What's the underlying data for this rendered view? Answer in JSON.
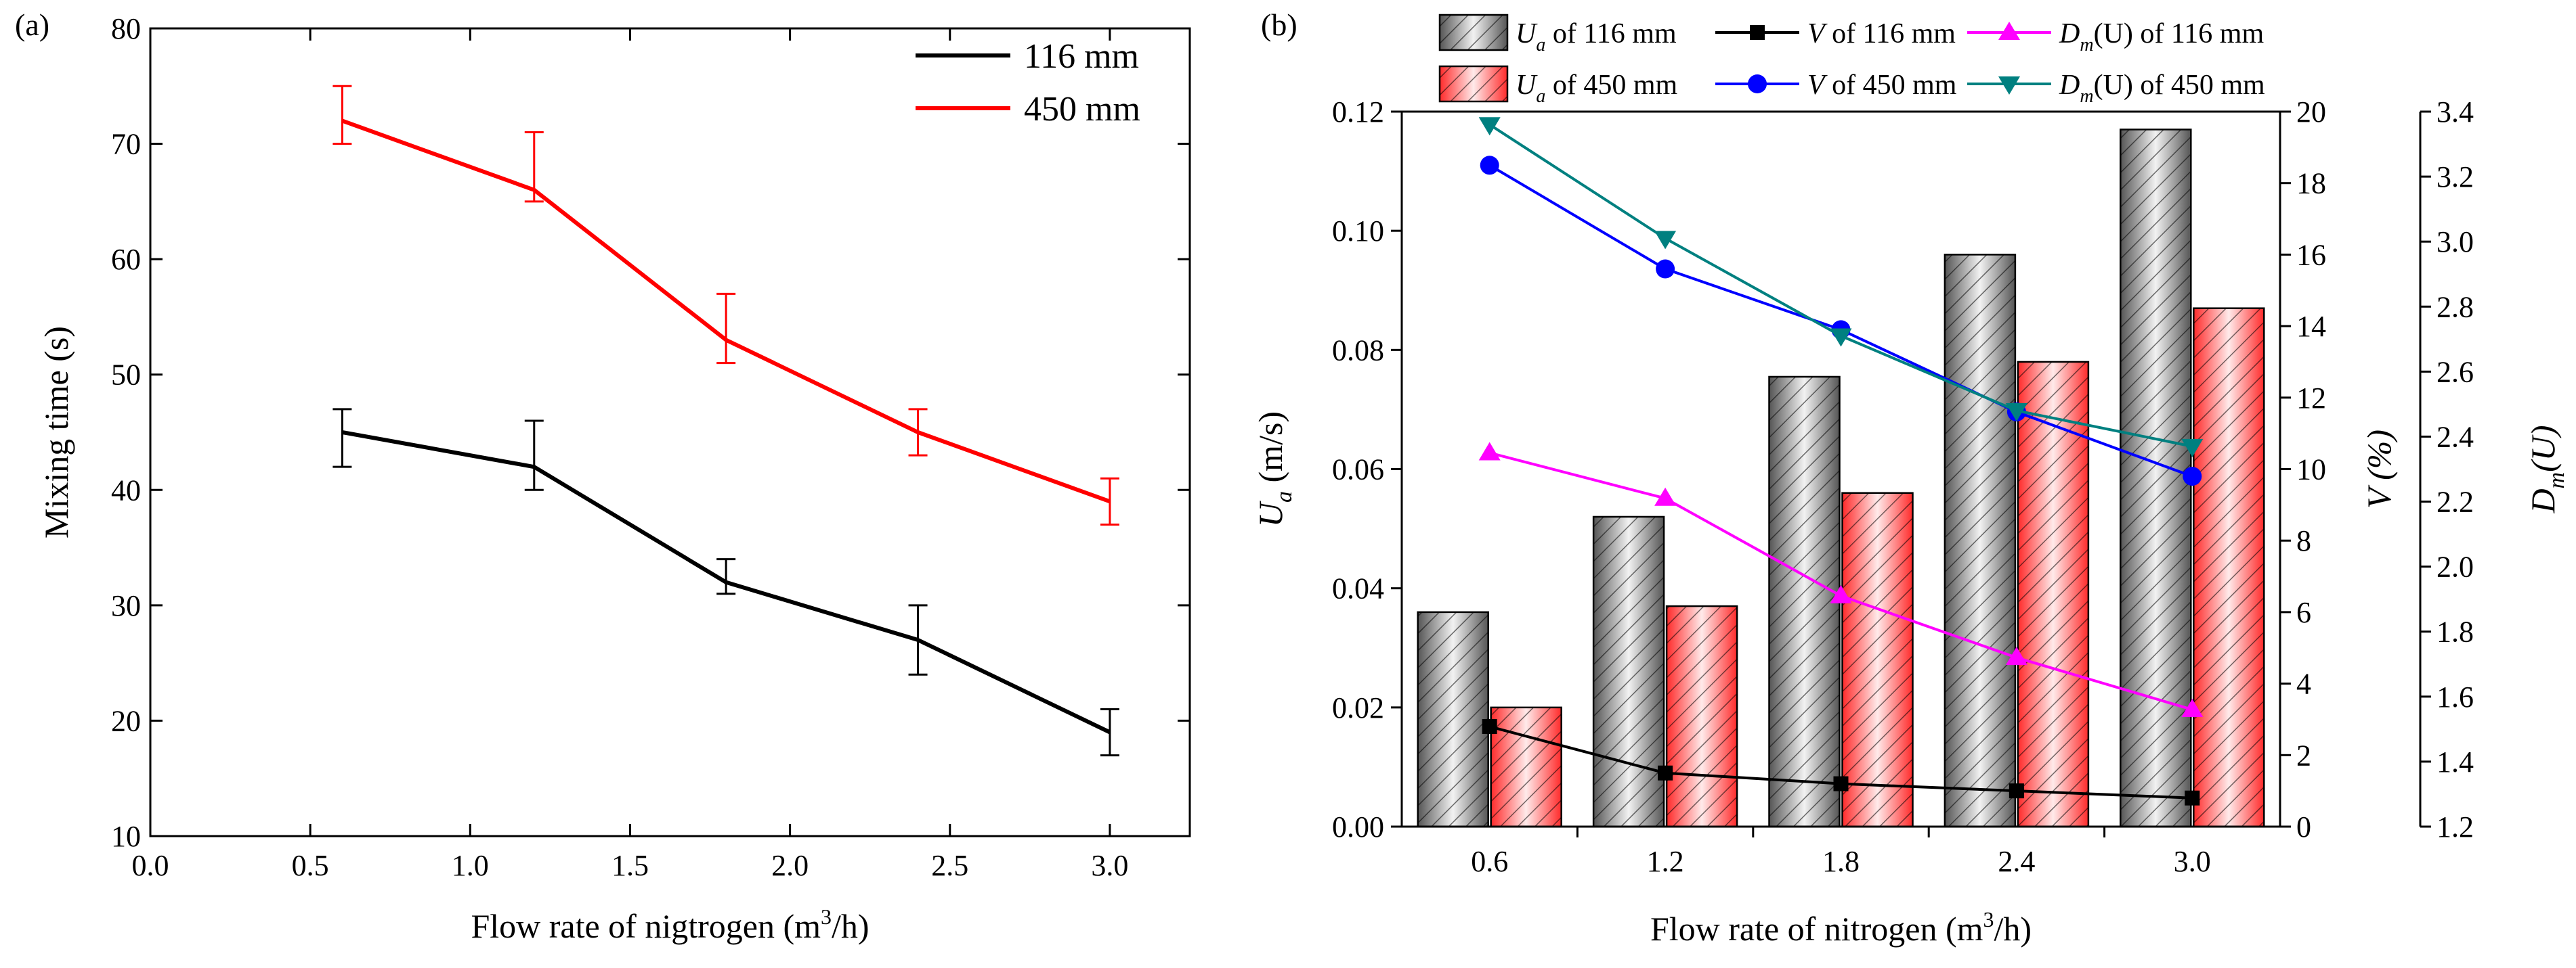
{
  "chart_data": [
    {
      "panel": "(a)",
      "type": "line",
      "title": "",
      "xlabel": "Flow rate of nigtrogen (m",
      "xlabel_sup": "3",
      "xlabel_tail": "/h)",
      "ylabel": "Mixing time (s)",
      "xlim": [
        0.0,
        3.25
      ],
      "ylim": [
        10,
        80
      ],
      "xticks": [
        0.0,
        0.5,
        1.0,
        1.5,
        2.0,
        2.5,
        3.0
      ],
      "xtick_labels": [
        "0.0",
        "0.5",
        "1.0",
        "1.5",
        "2.0",
        "2.5",
        "3.0"
      ],
      "yticks": [
        10,
        20,
        30,
        40,
        50,
        60,
        70,
        80
      ],
      "ytick_labels": [
        "10",
        "20",
        "30",
        "40",
        "50",
        "60",
        "70",
        "80"
      ],
      "grid": false,
      "legend_position": "top-right",
      "x": [
        0.6,
        1.2,
        1.8,
        2.4,
        3.0
      ],
      "series": [
        {
          "name": "116 mm",
          "color": "#000000",
          "values": [
            45,
            42,
            32,
            27,
            19
          ],
          "err_low": [
            42,
            40,
            31,
            24,
            17
          ],
          "err_high": [
            47,
            46,
            34,
            30,
            21
          ]
        },
        {
          "name": "450 mm",
          "color": "#ff0000",
          "values": [
            72,
            66,
            53,
            45,
            39
          ],
          "err_low": [
            70,
            65,
            51,
            43,
            37
          ],
          "err_high": [
            75,
            71,
            57,
            47,
            41
          ]
        }
      ]
    },
    {
      "panel": "(b)",
      "type": "bar",
      "title": "",
      "xlabel": "Flow rate of nitrogen (m",
      "xlabel_sup": "3",
      "xlabel_tail": "/h)",
      "categories": [
        "0.6",
        "1.2",
        "1.8",
        "2.4",
        "3.0"
      ],
      "legend_position": "top",
      "grid": false,
      "axes": {
        "left": {
          "label": "U",
          "label_sub": "a",
          "label_tail": " (m/s)",
          "range": [
            0.0,
            0.12
          ],
          "ticks": [
            0.0,
            0.02,
            0.04,
            0.06,
            0.08,
            0.1,
            0.12
          ],
          "tick_labels": [
            "0.00",
            "0.02",
            "0.04",
            "0.06",
            "0.08",
            "0.10",
            "0.12"
          ]
        },
        "right1": {
          "label": "V (%)",
          "range": [
            0,
            20
          ],
          "ticks": [
            0,
            2,
            4,
            6,
            8,
            10,
            12,
            14,
            16,
            18,
            20
          ],
          "tick_labels": [
            "0",
            "2",
            "4",
            "6",
            "8",
            "10",
            "12",
            "14",
            "16",
            "18",
            "20"
          ]
        },
        "right2": {
          "label": "D",
          "label_sub": "m",
          "label_tail": "(U)",
          "range": [
            1.2,
            3.4
          ],
          "ticks": [
            1.2,
            1.4,
            1.6,
            1.8,
            2.0,
            2.2,
            2.4,
            2.6,
            2.8,
            3.0,
            3.2,
            3.4
          ],
          "tick_labels": [
            "1.2",
            "1.4",
            "1.6",
            "1.8",
            "2.0",
            "2.2",
            "2.4",
            "2.6",
            "2.8",
            "3.0",
            "3.2",
            "3.4"
          ]
        }
      },
      "bars": [
        {
          "name": "U_a of 116 mm",
          "legend_main": "U",
          "legend_sub": "a",
          "legend_tail": " of 116 mm",
          "axis": "left",
          "color": "#000000",
          "values": [
            0.036,
            0.052,
            0.0755,
            0.096,
            0.117
          ]
        },
        {
          "name": "U_a of 450 mm",
          "legend_main": "U",
          "legend_sub": "a",
          "legend_tail": " of 450 mm",
          "axis": "left",
          "color": "#ff0000",
          "values": [
            0.02,
            0.037,
            0.056,
            0.078,
            0.087
          ]
        }
      ],
      "lines": [
        {
          "name": "V of 116 mm",
          "legend_main": "V",
          "legend_tail": " of 116 mm",
          "axis": "right1",
          "color": "#000000",
          "marker": "square",
          "values": [
            2.8,
            1.5,
            1.2,
            1.0,
            0.8
          ]
        },
        {
          "name": "V of 450 mm",
          "legend_main": "V",
          "legend_tail": " of 450 mm",
          "axis": "right1",
          "color": "#0000ff",
          "marker": "circle",
          "values": [
            18.5,
            15.6,
            13.9,
            11.6,
            9.8
          ]
        },
        {
          "name": "D_m(U) of 116 mm",
          "legend_main": "D",
          "legend_sub": "m",
          "legend_tail": "(U) of 116 mm",
          "axis": "right2",
          "color": "#ff00ff",
          "marker": "triangle-up",
          "values": [
            2.35,
            2.21,
            1.91,
            1.72,
            1.56
          ]
        },
        {
          "name": "D_m(U) of 450 mm",
          "legend_main": "D",
          "legend_sub": "m",
          "legend_tail": "(U) of 450 mm",
          "axis": "right2",
          "color": "#008080",
          "marker": "triangle-down",
          "values": [
            3.36,
            3.01,
            2.71,
            2.48,
            2.37
          ]
        }
      ]
    }
  ]
}
